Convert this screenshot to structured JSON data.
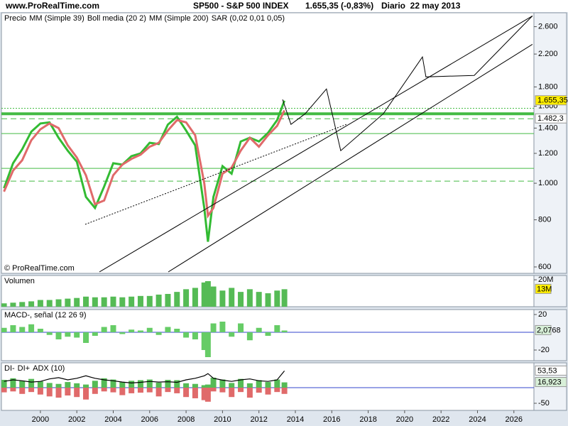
{
  "header": {
    "site": "www.ProRealTime.com",
    "symbol": "SP500 - S&P 500 INDEX",
    "quote": "1.655,35 (-0,83%)",
    "period": "Diario  22 may 2013"
  },
  "chart_data": [
    {
      "type": "line",
      "log": true,
      "xlim": [
        1997.86,
        2027.1
      ],
      "ylim": [
        577,
        2830
      ],
      "yticks": [
        {
          "value": 2600,
          "label": "2.600"
        },
        {
          "value": 2200,
          "label": "2.200"
        },
        {
          "value": 1800,
          "label": "1.800"
        },
        {
          "value": 1600,
          "label": "1.600"
        },
        {
          "value": 1400,
          "label": "1.400"
        },
        {
          "value": 1200,
          "label": "1.200"
        },
        {
          "value": 1000,
          "label": "1.000"
        },
        {
          "value": 800,
          "label": "800"
        },
        {
          "value": 600,
          "label": "600"
        }
      ],
      "x": [
        1998.0,
        1998.5,
        1999.0,
        1999.5,
        2000.0,
        2000.5,
        2001.0,
        2001.5,
        2002.0,
        2002.5,
        2003.0,
        2003.5,
        2004.0,
        2004.5,
        2005.0,
        2005.5,
        2006.0,
        2006.5,
        2007.0,
        2007.5,
        2008.0,
        2008.5,
        2009.0,
        2009.2,
        2009.5,
        2010.0,
        2010.5,
        2011.0,
        2011.5,
        2012.0,
        2012.5,
        2013.0,
        2013.4
      ],
      "series": [
        {
          "name": "Precio",
          "color": "#33bb33",
          "values": [
            970,
            1130,
            1230,
            1370,
            1440,
            1450,
            1320,
            1220,
            1140,
            920,
            860,
            980,
            1130,
            1120,
            1180,
            1200,
            1280,
            1270,
            1430,
            1500,
            1380,
            1260,
            860,
            700,
            920,
            1110,
            1060,
            1290,
            1320,
            1290,
            1360,
            1470,
            1655
          ]
        },
        {
          "name": "MM (Simple 39)",
          "color": "#e06a6a",
          "values": [
            950,
            1080,
            1150,
            1300,
            1390,
            1440,
            1400,
            1260,
            1170,
            1050,
            880,
            900,
            1050,
            1120,
            1160,
            1190,
            1250,
            1280,
            1380,
            1470,
            1450,
            1340,
            1000,
            820,
            860,
            1060,
            1100,
            1220,
            1320,
            1250,
            1340,
            1420,
            1560
          ]
        }
      ],
      "legend_extra": [
        {
          "label": "Boll media (20 2)",
          "color": "#9933cc"
        },
        {
          "label": "MM (Simple 200)",
          "color": "#e06a6a"
        },
        {
          "label": "SAR (0,02 0,01 0,05)",
          "color": "#33aa33"
        }
      ],
      "levels": [
        {
          "value": 1528,
          "color": "#44bb44",
          "style": "solid",
          "width": 4
        },
        {
          "value": 1580,
          "color": "#44bb44",
          "style": "dotted",
          "width": 1
        },
        {
          "value": 1482.3,
          "color": "#44bb44",
          "style": "dashed",
          "width": 1
        },
        {
          "value": 1354,
          "color": "#44bb44",
          "style": "solid",
          "width": 1
        },
        {
          "value": 1095,
          "color": "#44bb44",
          "style": "solid",
          "width": 1
        },
        {
          "value": 1013,
          "color": "#44bb44",
          "style": "dashed",
          "width": 1
        }
      ],
      "trendlines": [
        {
          "x": [
            2003.24,
            2027.02
          ],
          "y": [
            582,
            2777
          ],
          "style": "solid"
        },
        {
          "x": [
            2007.02,
            2027.02
          ],
          "y": [
            582,
            2335
          ],
          "style": "solid"
        },
        {
          "x": [
            2002.46,
            2016.8
          ],
          "y": [
            778,
            1432
          ],
          "style": "dotted"
        },
        {
          "x": [
            2013.3,
            2013.76,
            2014.54,
            2015.71,
            2016.49,
            2018.83,
            2020.98,
            2021.17,
            2023.82,
            2027.02
          ],
          "y": [
            1667,
            1432,
            1528,
            1778,
            1220,
            1528,
            2161,
            1914,
            1931,
            2777
          ],
          "style": "solid"
        }
      ],
      "price_labels": [
        {
          "value": 1655.35,
          "label": "1.655,35",
          "background": "#ffee00"
        },
        {
          "value": 1482.3,
          "label": "1.482,3",
          "background": "#ffffff"
        }
      ],
      "copyright": "© ProRealTime.com"
    },
    {
      "type": "bar",
      "title": "Volumen",
      "title_color": "#e06a6a",
      "color": "#55bb55",
      "xlim": [
        1997.86,
        2027.1
      ],
      "ylim": [
        0,
        23200000
      ],
      "yticks": [
        {
          "value": 20000000,
          "label": "20M"
        }
      ],
      "x": [
        1998.0,
        1998.5,
        1999.0,
        1999.5,
        2000.0,
        2000.5,
        2001.0,
        2001.5,
        2002.0,
        2002.5,
        2003.0,
        2003.5,
        2004.0,
        2004.5,
        2005.0,
        2005.5,
        2006.0,
        2006.5,
        2007.0,
        2007.5,
        2008.0,
        2008.5,
        2009.0,
        2009.2,
        2009.5,
        2010.0,
        2010.5,
        2011.0,
        2011.5,
        2012.0,
        2012.5,
        2013.0,
        2013.4
      ],
      "values": [
        2500000,
        3000000,
        3500000,
        4000000,
        5000000,
        5000000,
        5500000,
        6000000,
        6500000,
        7500000,
        7000000,
        7000000,
        7500000,
        7000000,
        7500000,
        8000000,
        8000000,
        9000000,
        9500000,
        11000000,
        13000000,
        14000000,
        18000000,
        19000000,
        15000000,
        12000000,
        14000000,
        11000000,
        13000000,
        11000000,
        10000000,
        12000000,
        13000000
      ],
      "last_label": {
        "value": 13000000,
        "label": "13M",
        "background": "#ffee00"
      }
    },
    {
      "type": "bar",
      "title": "MACD-, señal (12 26 9)",
      "title_color": "#33aa33",
      "color": "#66cc66",
      "zero_line": true,
      "xlim": [
        1997.86,
        2027.1
      ],
      "ylim": [
        -32,
        25.6
      ],
      "yticks": [
        20,
        -20
      ],
      "x": [
        1998.0,
        1998.5,
        1999.0,
        1999.5,
        2000.0,
        2000.5,
        2001.0,
        2001.5,
        2002.0,
        2002.5,
        2003.0,
        2003.5,
        2004.0,
        2004.5,
        2005.0,
        2005.5,
        2006.0,
        2006.5,
        2007.0,
        2007.5,
        2008.0,
        2008.5,
        2009.0,
        2009.2,
        2009.5,
        2010.0,
        2010.5,
        2011.0,
        2011.5,
        2012.0,
        2012.5,
        2013.0,
        2013.4
      ],
      "values": [
        5,
        8,
        6,
        9,
        4,
        -3,
        -8,
        -5,
        -6,
        -12,
        -4,
        6,
        8,
        -2,
        3,
        2,
        5,
        -3,
        6,
        4,
        -6,
        -8,
        -20,
        -28,
        10,
        12,
        -5,
        10,
        -9,
        5,
        -4,
        8,
        2
      ],
      "last_label": {
        "value": 2.0768,
        "label": "2,0768",
        "background": "#d8f0d8"
      }
    },
    {
      "type": "bar",
      "zero_line": true,
      "xlim": [
        1997.86,
        2027.1
      ],
      "ylim": [
        -72.7,
        79.5
      ],
      "yticks": [
        -50
      ],
      "xticks": [
        2000,
        2002,
        2004,
        2006,
        2008,
        2010,
        2012,
        2014,
        2016,
        2018,
        2020,
        2022,
        2024,
        2026
      ],
      "x": [
        1998.0,
        1998.5,
        1999.0,
        1999.5,
        2000.0,
        2000.5,
        2001.0,
        2001.5,
        2002.0,
        2002.5,
        2003.0,
        2003.5,
        2004.0,
        2004.5,
        2005.0,
        2005.5,
        2006.0,
        2006.5,
        2007.0,
        2007.5,
        2008.0,
        2008.5,
        2009.0,
        2009.2,
        2009.5,
        2010.0,
        2010.5,
        2011.0,
        2011.5,
        2012.0,
        2012.5,
        2013.0,
        2013.4
      ],
      "series": [
        {
          "name": "DI-",
          "color": "#e06a6a",
          "mark": "bar",
          "values": [
            -15,
            -12,
            -20,
            -14,
            -22,
            -28,
            -32,
            -25,
            -30,
            -38,
            -20,
            -12,
            -15,
            -24,
            -18,
            -16,
            -15,
            -28,
            -14,
            -18,
            -30,
            -34,
            -40,
            -45,
            -12,
            -15,
            -30,
            -14,
            -32,
            -16,
            -22,
            -14,
            -20
          ]
        },
        {
          "name": "DI+",
          "color": "#55bb55",
          "mark": "bar",
          "values": [
            25,
            30,
            22,
            28,
            20,
            15,
            12,
            18,
            14,
            10,
            22,
            30,
            26,
            18,
            22,
            24,
            26,
            16,
            25,
            24,
            14,
            12,
            8,
            10,
            32,
            26,
            15,
            28,
            14,
            24,
            18,
            26,
            16.923
          ]
        },
        {
          "name": "ADX (10)",
          "color": "#000000",
          "mark": "line",
          "values": [
            20,
            25,
            22,
            18,
            20,
            28,
            32,
            25,
            30,
            38,
            30,
            25,
            22,
            18,
            15,
            17,
            20,
            18,
            19,
            17,
            25,
            30,
            38,
            45,
            30,
            24,
            20,
            25,
            28,
            22,
            20,
            25,
            53.53
          ]
        }
      ],
      "last_labels": [
        {
          "value": 53.53,
          "label": "53,53",
          "background": "#ffffff"
        },
        {
          "value": 16.923,
          "label": "16,923",
          "background": "#d8f0d8"
        }
      ]
    }
  ]
}
